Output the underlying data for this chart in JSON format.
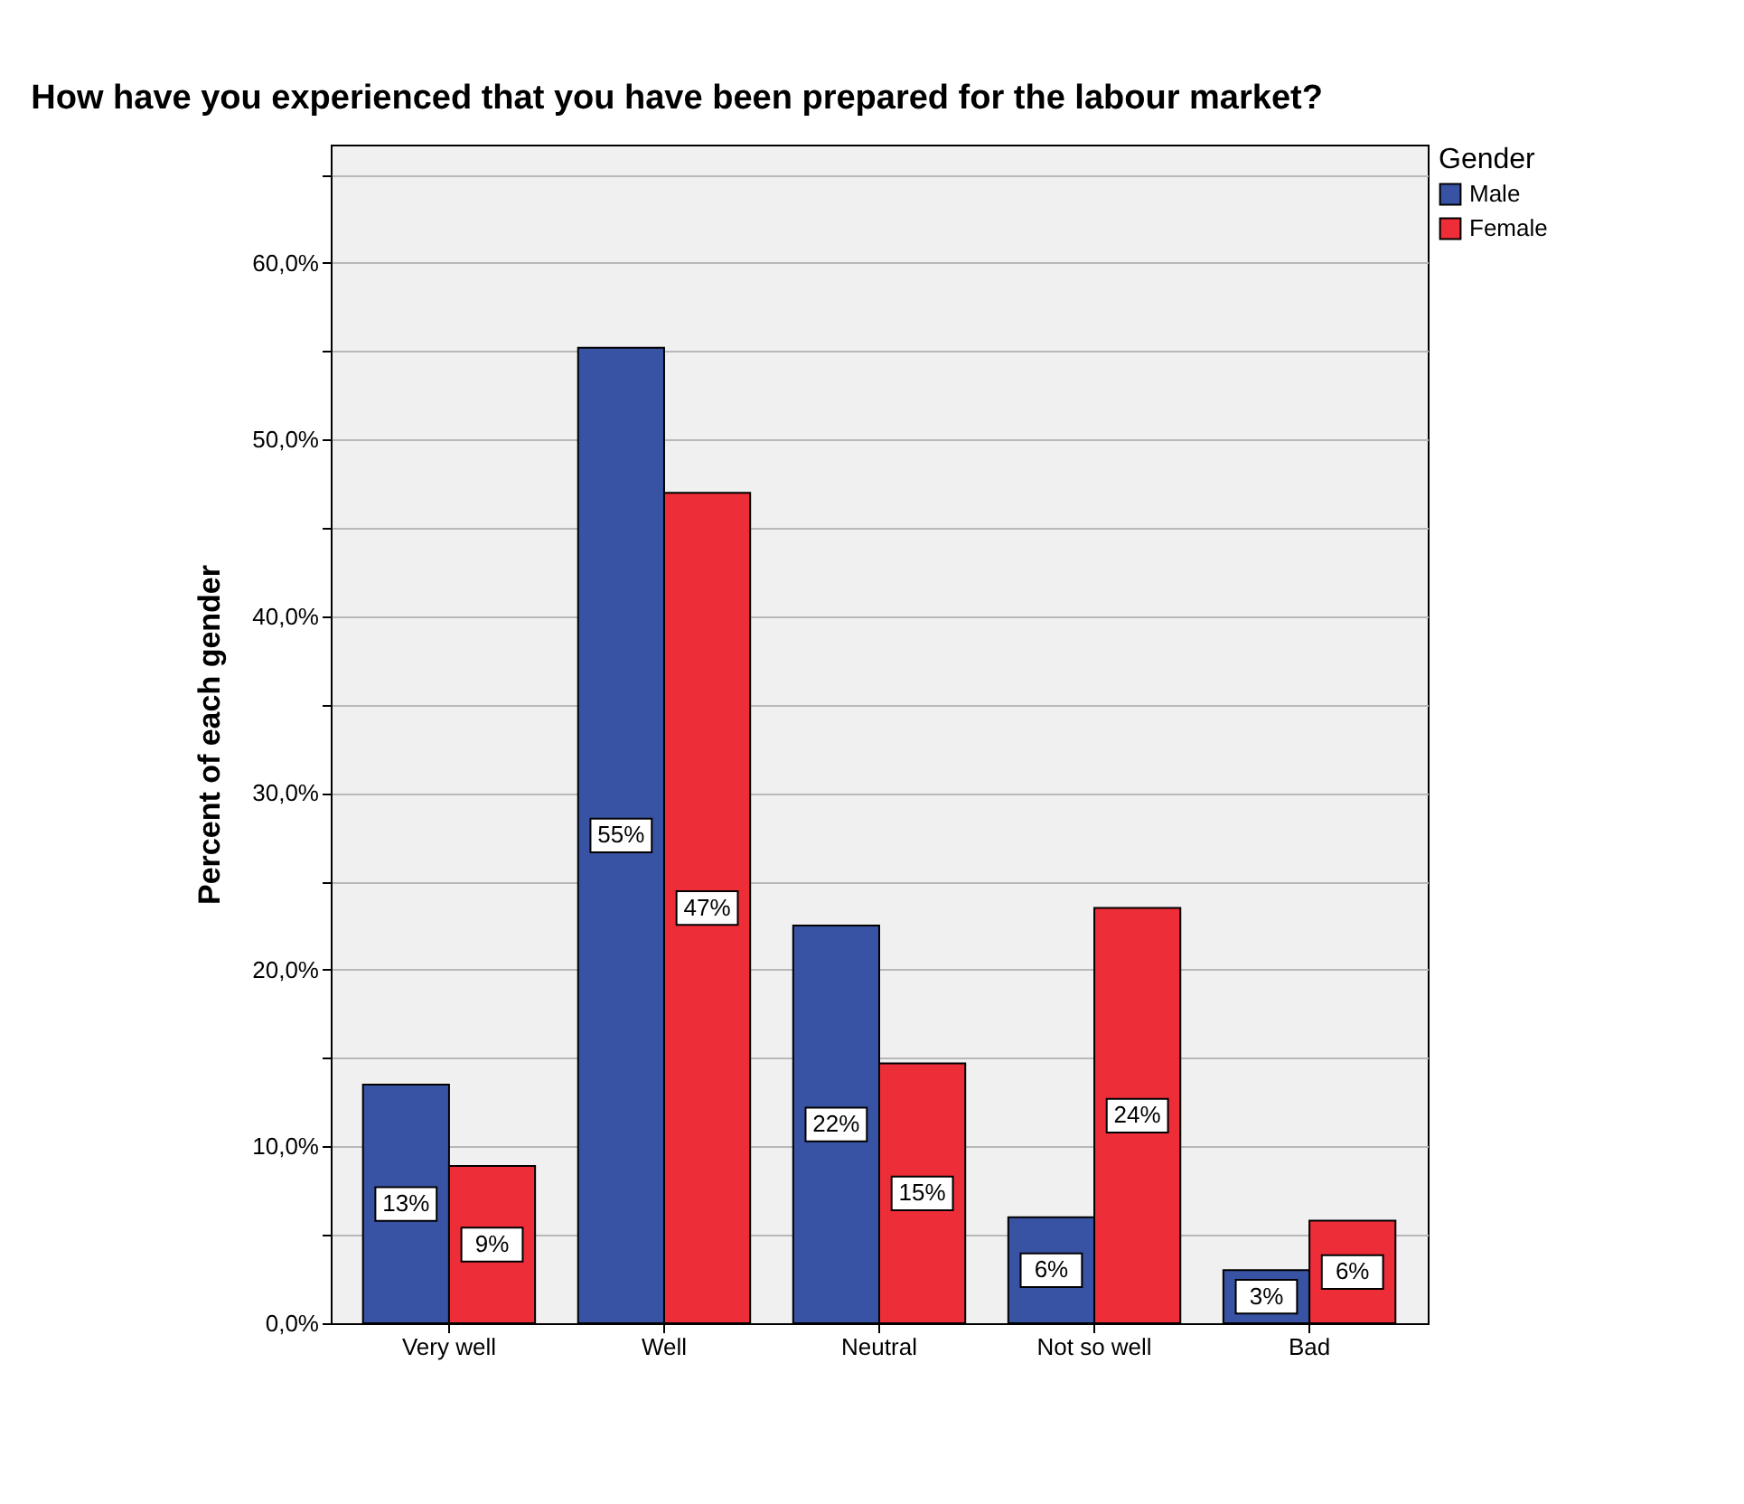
{
  "chart_data": {
    "type": "bar",
    "title": "How have you experienced that you have been prepared for the labour market?",
    "ylabel": "Percent of each gender",
    "legend_title": "Gender",
    "categories": [
      "Very well",
      "Well",
      "Neutral",
      "Not so well",
      "Bad"
    ],
    "series": [
      {
        "name": "Male",
        "color": "#3953a4",
        "values": [
          13.5,
          55.2,
          22.5,
          6.0,
          3.0
        ],
        "value_labels": [
          "13%",
          "55%",
          "22%",
          "6%",
          "3%"
        ]
      },
      {
        "name": "Female",
        "color": "#ed2d37",
        "values": [
          8.9,
          47.0,
          14.7,
          23.5,
          5.8
        ],
        "value_labels": [
          "9%",
          "47%",
          "15%",
          "24%",
          "6%"
        ]
      }
    ],
    "ylim": [
      0,
      66.7
    ],
    "yticks": [
      {
        "value": 0,
        "label": "0,0%"
      },
      {
        "value": 5,
        "label": null
      },
      {
        "value": 10,
        "label": "10,0%"
      },
      {
        "value": 15,
        "label": null
      },
      {
        "value": 20,
        "label": "20,0%"
      },
      {
        "value": 25,
        "label": null
      },
      {
        "value": 30,
        "label": "30,0%"
      },
      {
        "value": 35,
        "label": null
      },
      {
        "value": 40,
        "label": "40,0%"
      },
      {
        "value": 45,
        "label": null
      },
      {
        "value": 50,
        "label": "50,0%"
      },
      {
        "value": 55,
        "label": null
      },
      {
        "value": 60,
        "label": "60,0%"
      },
      {
        "value": 65,
        "label": null
      }
    ],
    "grid": "y",
    "legend": "top right"
  }
}
